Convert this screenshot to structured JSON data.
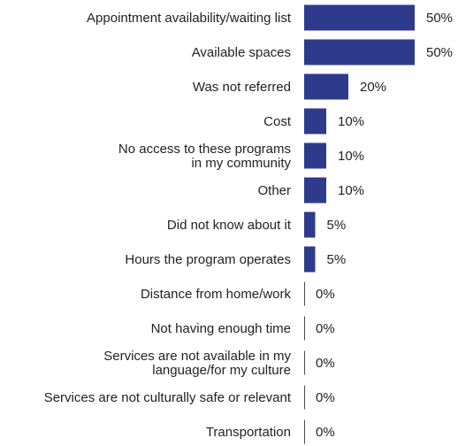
{
  "colors": {
    "bar": "#2e3a8c",
    "axis": "#4a4a4a",
    "text": "#222222",
    "background": "#ffffff"
  },
  "chart_data": {
    "type": "bar",
    "orientation": "horizontal",
    "categories": [
      [
        "Appointment availability/waiting list"
      ],
      [
        "Available spaces"
      ],
      [
        "Was not referred"
      ],
      [
        "Cost"
      ],
      [
        "No access to these programs",
        "in my community"
      ],
      [
        "Other"
      ],
      [
        "Did not know about it"
      ],
      [
        "Hours the program operates"
      ],
      [
        "Distance from home/work"
      ],
      [
        "Not having enough time"
      ],
      [
        "Services are not available in my",
        "language/for my culture"
      ],
      [
        "Services are not culturally safe or relevant"
      ],
      [
        "Transportation"
      ]
    ],
    "values": [
      50,
      50,
      20,
      10,
      10,
      10,
      5,
      5,
      0,
      0,
      0,
      0,
      0
    ],
    "value_labels": [
      "50%",
      "50%",
      "20%",
      "10%",
      "10%",
      "10%",
      "5%",
      "5%",
      "0%",
      "0%",
      "0%",
      "0%",
      "0%"
    ],
    "unit": "%",
    "xlim": [
      0,
      50
    ],
    "grid": false,
    "legend": "none"
  }
}
